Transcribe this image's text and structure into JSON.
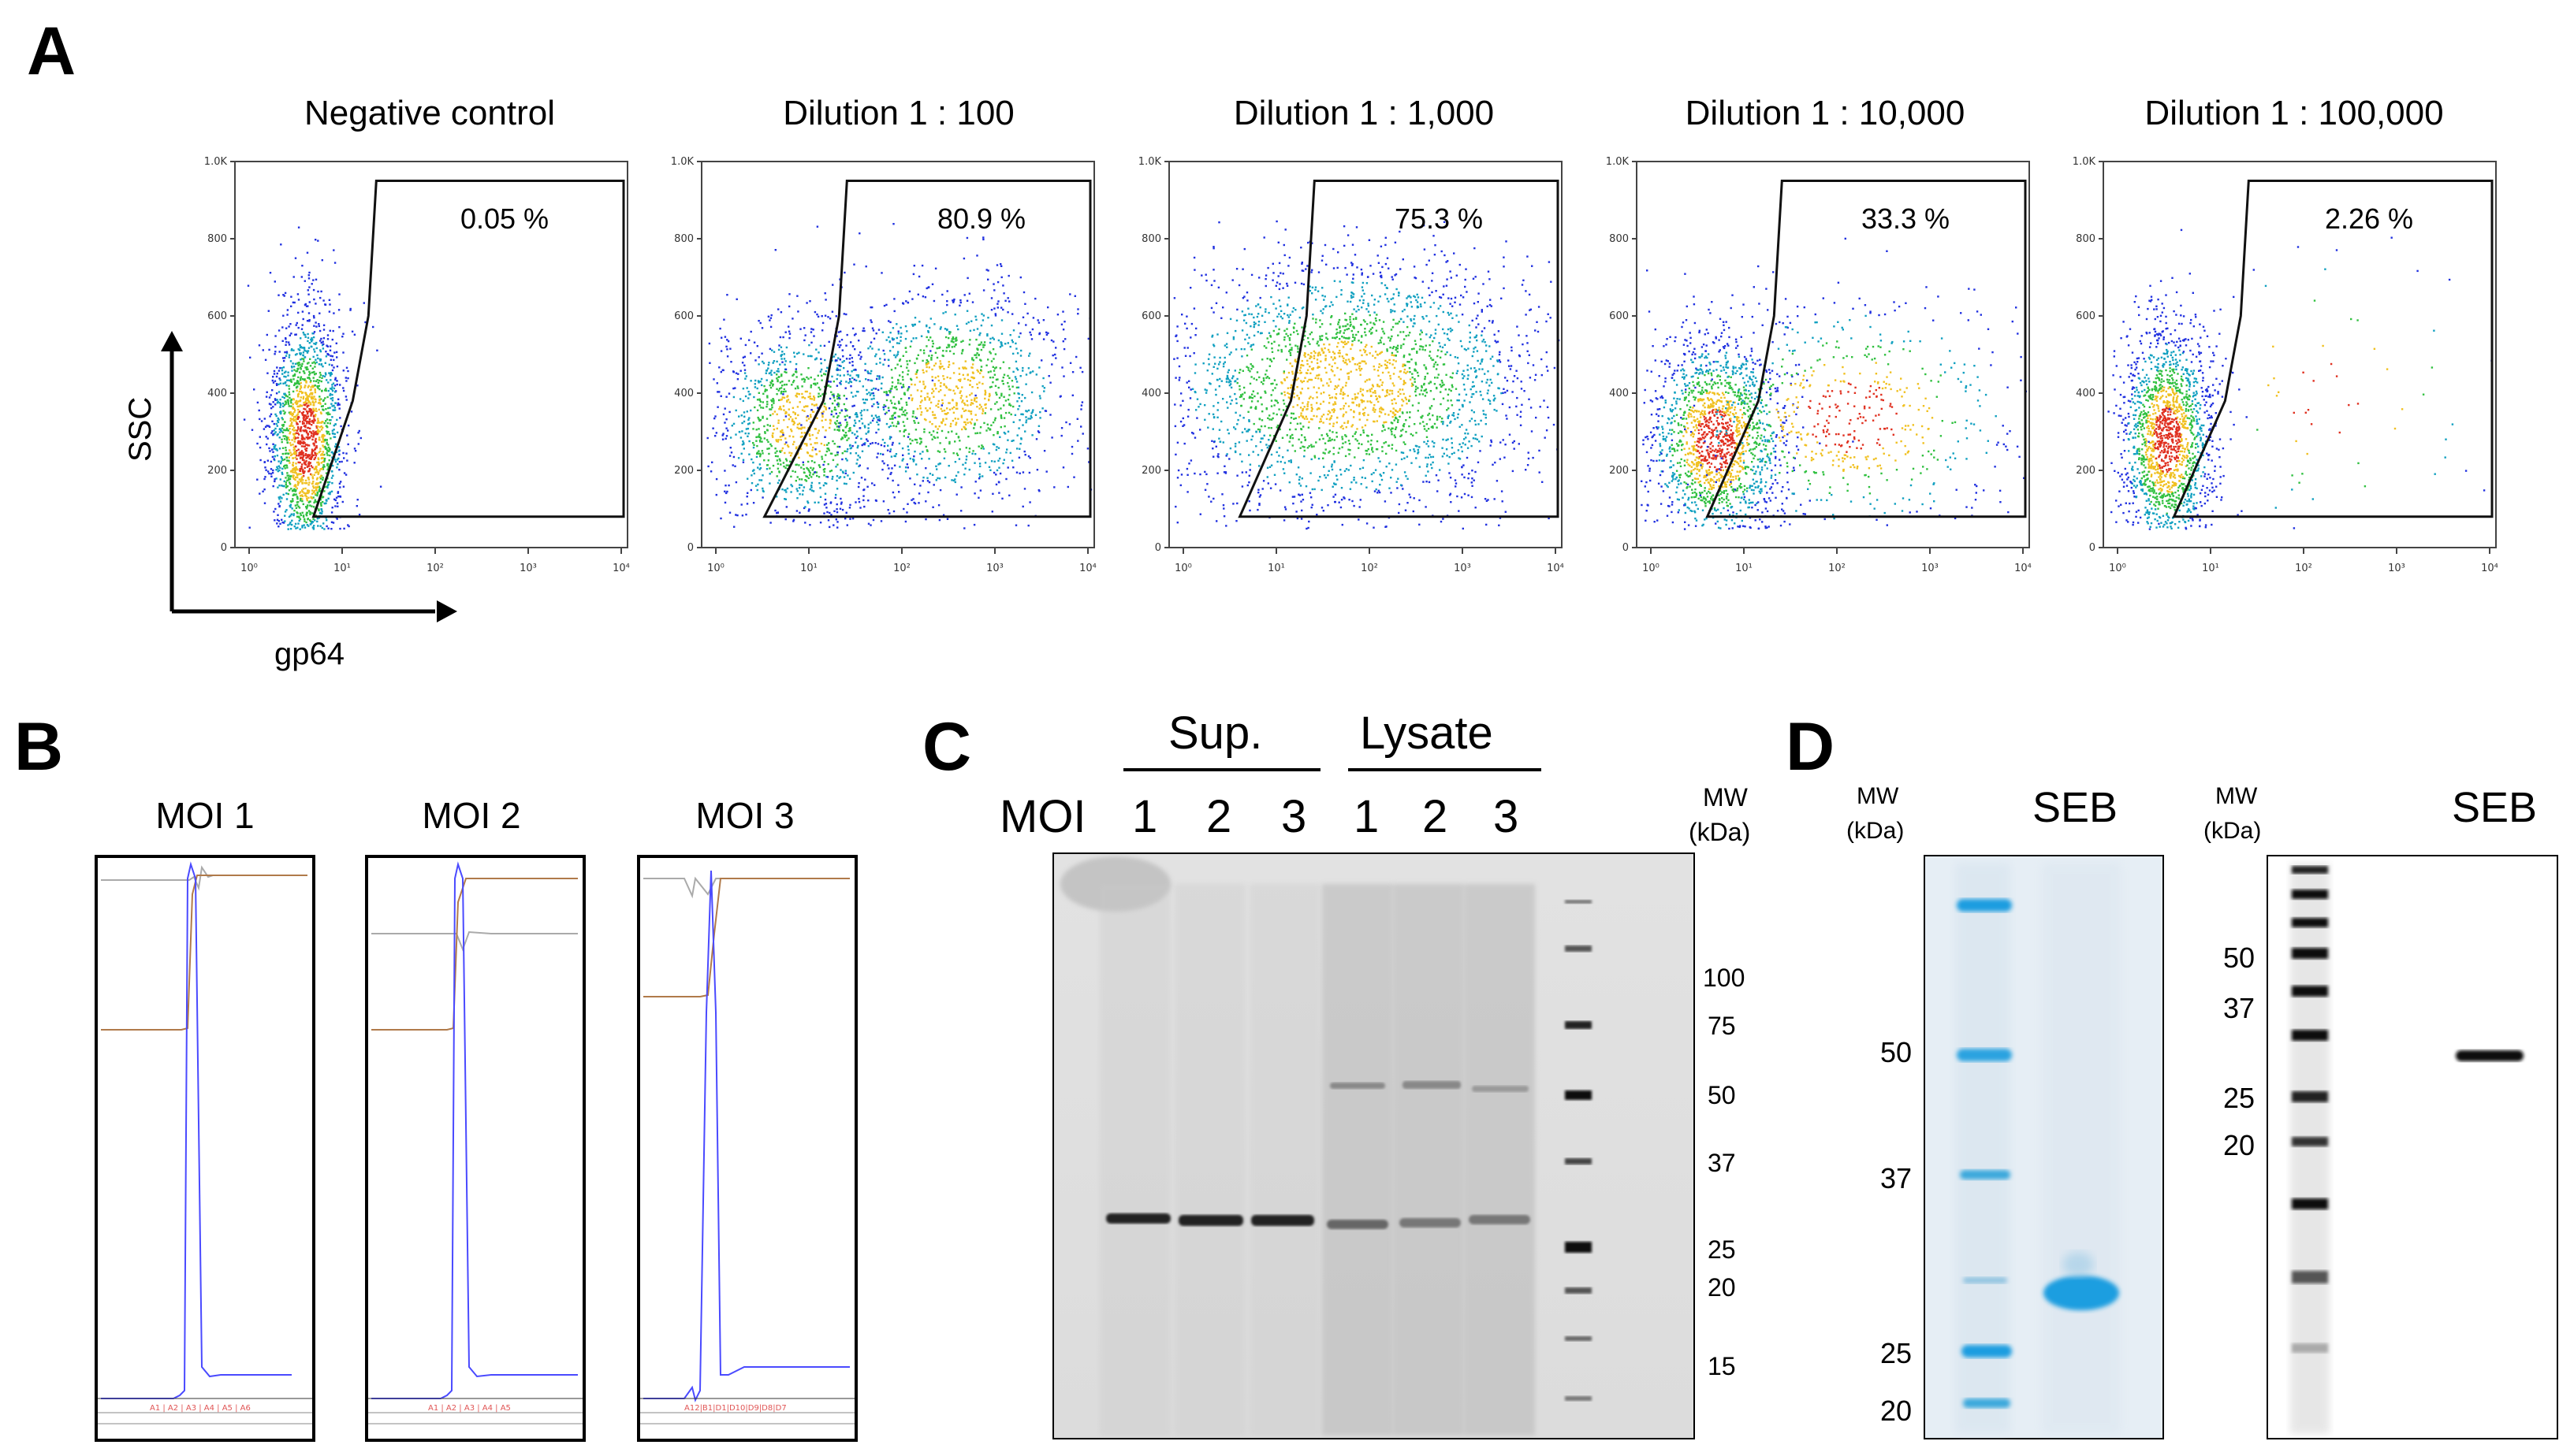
{
  "panels": {
    "a": {
      "letter": "A",
      "y_axis_label": "SSC",
      "x_axis_label": "gp64",
      "y_ticks": [
        "1.0K",
        "800",
        "600",
        "400",
        "200",
        "0"
      ],
      "x_ticks": [
        "10⁰",
        "10¹",
        "10²",
        "10³",
        "10⁴"
      ],
      "plots": [
        {
          "title": "Negative control",
          "percent": "0.05 %"
        },
        {
          "title": "Dilution  1 : 100",
          "percent": "80.9 %"
        },
        {
          "title": "Dilution  1 : 1,000",
          "percent": "75.3 %"
        },
        {
          "title": "Dilution  1 : 10,000",
          "percent": "33.3 %"
        },
        {
          "title": "Dilution  1 : 100,000",
          "percent": "2.26 %"
        }
      ]
    },
    "b": {
      "letter": "B",
      "traces": [
        {
          "title": "MOI 1"
        },
        {
          "title": "MOI 2"
        },
        {
          "title": "MOI 3"
        }
      ]
    },
    "c": {
      "letter": "C",
      "group_sup": "Sup.",
      "group_lysate": "Lysate",
      "moi_label": "MOI",
      "lanes": [
        "1",
        "2",
        "3",
        "1",
        "2",
        "3"
      ],
      "mw_header_1": "MW",
      "mw_header_2": "(kDa)",
      "markers": [
        "100",
        "75",
        "50",
        "37",
        "25",
        "20",
        "15"
      ]
    },
    "d": {
      "letter": "D",
      "left": {
        "mw_header_1": "MW",
        "mw_header_2": "(kDa)",
        "title": "SEB",
        "markers": [
          "50",
          "37",
          "25",
          "20"
        ]
      },
      "right": {
        "mw_header_1": "MW",
        "mw_header_2": "(kDa)",
        "title": "SEB",
        "markers": [
          "50",
          "37",
          "25",
          "20"
        ]
      }
    }
  }
}
